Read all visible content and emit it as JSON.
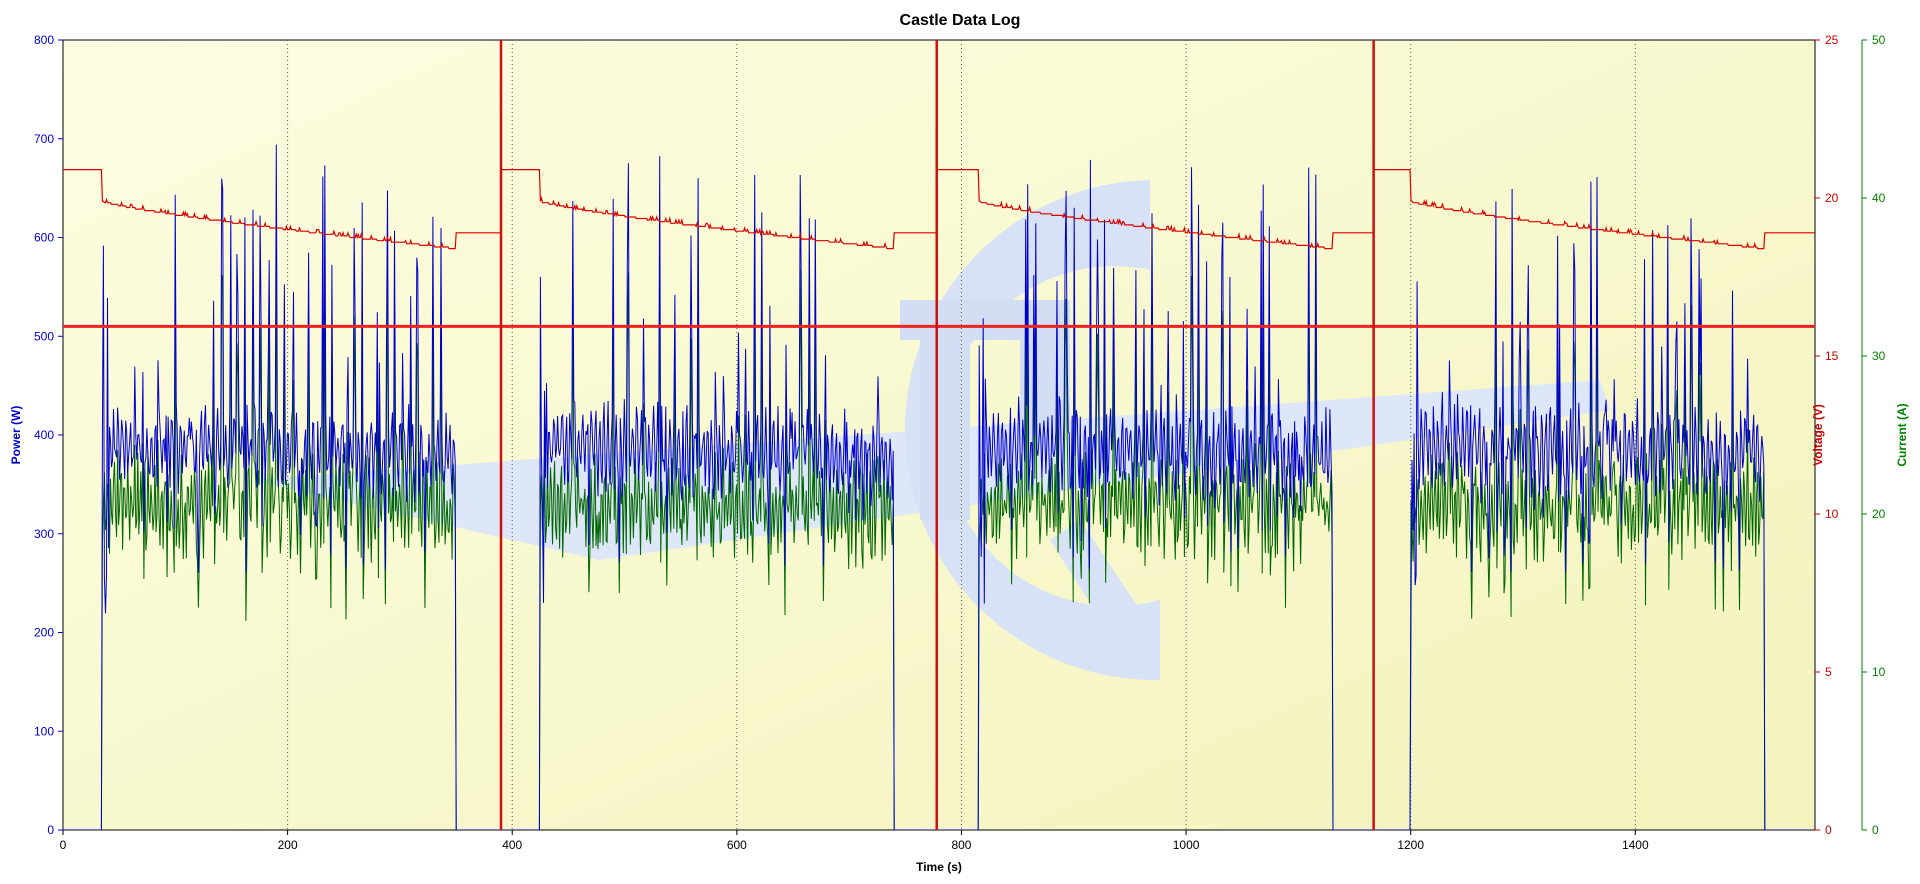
{
  "chart_data": {
    "type": "line",
    "title": "Castle Data Log",
    "xlabel": "Time (s)",
    "xlim": [
      0,
      1560
    ],
    "x_ticks": [
      0,
      200,
      400,
      600,
      800,
      1000,
      1200,
      1400
    ],
    "grid": "vertical-dotted",
    "legend": "none",
    "axes": {
      "power": {
        "label": "Power (W)",
        "side": "left",
        "lim": [
          0,
          800
        ],
        "ticks": [
          0,
          100,
          200,
          300,
          400,
          500,
          600,
          700,
          800
        ],
        "color": "#0000cc"
      },
      "voltage": {
        "label": "Voltage (V)",
        "side": "right",
        "lim": [
          0,
          25
        ],
        "ticks": [
          0,
          5,
          10,
          15,
          20,
          25
        ],
        "color": "#cc0000"
      },
      "current": {
        "label": "Current (A)",
        "side": "right-outer",
        "lim": [
          0,
          50
        ],
        "ticks": [
          0,
          10,
          20,
          30,
          40,
          50
        ],
        "color": "#008000"
      }
    },
    "markers": {
      "horizontal_power": 510,
      "vertical_times": [
        390,
        778,
        1167
      ],
      "color": "#ee2222"
    },
    "segments": [
      {
        "start": 0,
        "end": 390,
        "run_start": 35,
        "run_end": 350
      },
      {
        "start": 390,
        "end": 778,
        "run_start": 425,
        "run_end": 740
      },
      {
        "start": 778,
        "end": 1167,
        "run_start": 815,
        "run_end": 1130
      },
      {
        "start": 1167,
        "end": 1560,
        "run_start": 1200,
        "run_end": 1515
      }
    ],
    "voltage_profile": {
      "rest": 20.9,
      "start": 19.9,
      "end": 18.4,
      "recovered": 18.9
    },
    "series": [
      {
        "axis": "power",
        "base": 390,
        "burst_peak": 680,
        "spread": 30
      },
      {
        "axis": "current",
        "base": 20.5,
        "burst_peak": 36,
        "spread": 2
      },
      {
        "axis": "voltage"
      }
    ],
    "colors": {
      "power": "#0000cc",
      "voltage": "#dd0000",
      "current": "#006600",
      "plot_bg_light": "#fbfbd8",
      "plot_bg_dark": "#f5f5c0",
      "watermark": "#d8e4f8"
    }
  }
}
